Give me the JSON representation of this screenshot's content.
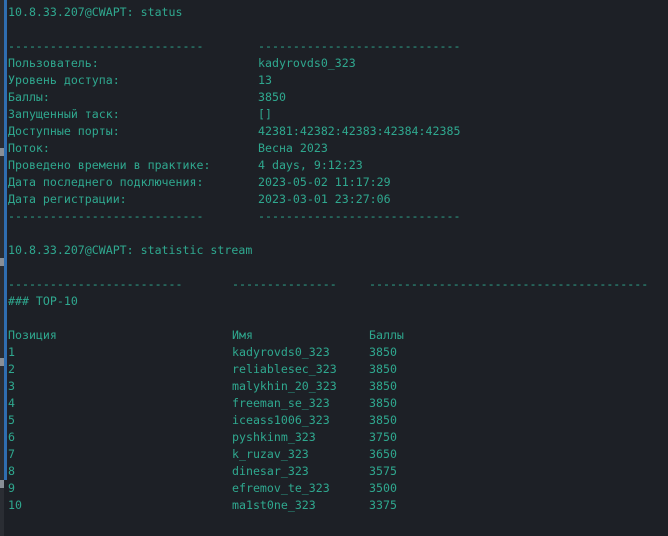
{
  "theme": {
    "background": "#1d2026",
    "text": "#2fa88f",
    "accent_bar": "#2f6db0"
  },
  "status_command": "10.8.33.207@CWAPT: status",
  "status": {
    "dash_left": "----------------------------",
    "dash_right": "-----------------------------",
    "rows": [
      {
        "label": "Пользователь:",
        "value": "kadyrovds0_323"
      },
      {
        "label": "Уровень доступа:",
        "value": "13"
      },
      {
        "label": "Баллы:",
        "value": "3850"
      },
      {
        "label": "Запущенный таск:",
        "value": "[]"
      },
      {
        "label": "Доступные порты:",
        "value": "42381:42382:42383:42384:42385"
      },
      {
        "label": "Поток:",
        "value": "Весна 2023"
      },
      {
        "label": "Проведено времени в практике:",
        "value": "4 days, 9:12:23"
      },
      {
        "label": "Дата последнего подключения:",
        "value": "2023-05-02 11:17:29"
      },
      {
        "label": "Дата регистрации:",
        "value": "2023-03-01 23:27:06"
      }
    ]
  },
  "stats_command": "10.8.33.207@CWAPT: statistic stream",
  "stats": {
    "dash1": "-------------------------",
    "dash2": "---------------",
    "dash3": "----------------------------------------",
    "heading": "### TOP-10",
    "headers": {
      "position": "Позиция",
      "name": "Имя",
      "score": "Баллы"
    },
    "rows": [
      {
        "position": "1",
        "name": "kadyrovds0_323",
        "score": "3850"
      },
      {
        "position": "2",
        "name": "reliablesec_323",
        "score": "3850"
      },
      {
        "position": "3",
        "name": "malykhin_20_323",
        "score": "3850"
      },
      {
        "position": "4",
        "name": "freeman_se_323",
        "score": "3850"
      },
      {
        "position": "5",
        "name": "iceass1006_323",
        "score": "3850"
      },
      {
        "position": "6",
        "name": "pyshkinm_323",
        "score": "3750"
      },
      {
        "position": "7",
        "name": "k_ruzav_323",
        "score": "3650"
      },
      {
        "position": "8",
        "name": "dinesar_323",
        "score": "3575"
      },
      {
        "position": "9",
        "name": "efremov_te_323",
        "score": "3500"
      },
      {
        "position": "10",
        "name": "ma1st0ne_323",
        "score": "3375"
      }
    ]
  }
}
